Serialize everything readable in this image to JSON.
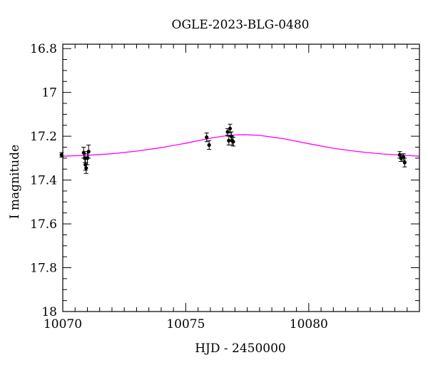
{
  "chart_data": {
    "type": "scatter",
    "title": "OGLE-2023-BLG-0480",
    "xlabel": "HJD - 2450000",
    "ylabel": "I magnitude",
    "xlim": [
      10070,
      10084.5
    ],
    "ylim": [
      18,
      16.78
    ],
    "y_inverted": true,
    "x_ticks": [
      10070,
      10075,
      10080
    ],
    "y_ticks": [
      16.8,
      17,
      17.2,
      17.4,
      17.6,
      17.8,
      18
    ],
    "y_tick_labels": [
      "16.8",
      "17",
      "17.2",
      "17.4",
      "17.6",
      "17.8",
      "18"
    ],
    "x_tick_labels": [
      "10070",
      "10075",
      "10080"
    ],
    "grid": false,
    "colors": {
      "points": "#000000",
      "model": "#ff00ff",
      "axes": "#000000"
    },
    "series": [
      {
        "type": "scatter",
        "points": [
          {
            "x": 10069.95,
            "y": 17.285,
            "err": 0.01
          },
          {
            "x": 10070.85,
            "y": 17.275,
            "err": 0.025
          },
          {
            "x": 10070.9,
            "y": 17.3,
            "err": 0.02
          },
          {
            "x": 10070.92,
            "y": 17.33,
            "err": 0.025
          },
          {
            "x": 10070.95,
            "y": 17.345,
            "err": 0.025
          },
          {
            "x": 10071.0,
            "y": 17.3,
            "err": 0.03
          },
          {
            "x": 10071.05,
            "y": 17.27,
            "err": 0.03
          },
          {
            "x": 10075.85,
            "y": 17.205,
            "err": 0.02
          },
          {
            "x": 10075.95,
            "y": 17.24,
            "err": 0.02
          },
          {
            "x": 10076.7,
            "y": 17.18,
            "err": 0.015
          },
          {
            "x": 10076.75,
            "y": 17.22,
            "err": 0.02
          },
          {
            "x": 10076.8,
            "y": 17.165,
            "err": 0.02
          },
          {
            "x": 10076.85,
            "y": 17.2,
            "err": 0.02
          },
          {
            "x": 10076.88,
            "y": 17.22,
            "err": 0.02
          },
          {
            "x": 10076.93,
            "y": 17.225,
            "err": 0.02
          },
          {
            "x": 10083.7,
            "y": 17.285,
            "err": 0.015
          },
          {
            "x": 10083.75,
            "y": 17.3,
            "err": 0.015
          },
          {
            "x": 10083.85,
            "y": 17.295,
            "err": 0.015
          },
          {
            "x": 10083.9,
            "y": 17.32,
            "err": 0.02
          }
        ]
      },
      {
        "type": "line",
        "x": [
          10070,
          10071,
          10072,
          10073,
          10074,
          10075,
          10076,
          10076.5,
          10077,
          10077.4,
          10078,
          10079,
          10080,
          10081,
          10082,
          10083,
          10084,
          10084.5
        ],
        "y": [
          17.291,
          17.287,
          17.28,
          17.268,
          17.252,
          17.232,
          17.209,
          17.2,
          17.194,
          17.193,
          17.196,
          17.212,
          17.234,
          17.255,
          17.27,
          17.281,
          17.288,
          17.291
        ]
      }
    ]
  }
}
